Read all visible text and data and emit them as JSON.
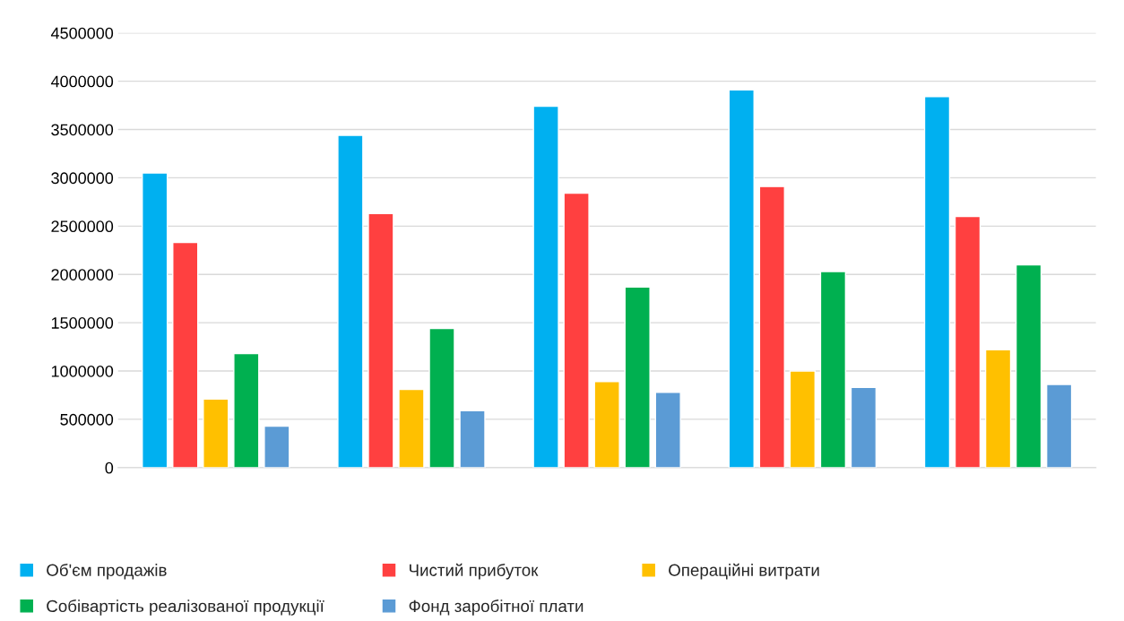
{
  "chart_data": {
    "type": "bar",
    "categories": [
      null,
      null,
      null,
      null,
      null
    ],
    "series": [
      {
        "name": "Об'єм продажів",
        "color": "#00b0f0",
        "values": [
          3050000,
          3440000,
          3740000,
          3910000,
          3840000
        ]
      },
      {
        "name": "Чистий прибуток",
        "color": "#ff4040",
        "values": [
          2330000,
          2630000,
          2840000,
          2910000,
          2600000
        ]
      },
      {
        "name": "Операційні витрати",
        "color": "#ffc000",
        "values": [
          710000,
          810000,
          890000,
          1000000,
          1220000
        ]
      },
      {
        "name": "Собівартість реалізованої продукції",
        "color": "#00b050",
        "values": [
          1180000,
          1440000,
          1870000,
          2030000,
          2100000
        ]
      },
      {
        "name": "Фонд заробітної плати",
        "color": "#5b9bd5",
        "values": [
          430000,
          590000,
          780000,
          830000,
          860000
        ]
      }
    ],
    "ylim": [
      0,
      4500000
    ],
    "yticks": [
      0,
      500000,
      1000000,
      1500000,
      2000000,
      2500000,
      3000000,
      3500000,
      4000000,
      4500000
    ],
    "grid": "y",
    "legend": "bottom"
  }
}
